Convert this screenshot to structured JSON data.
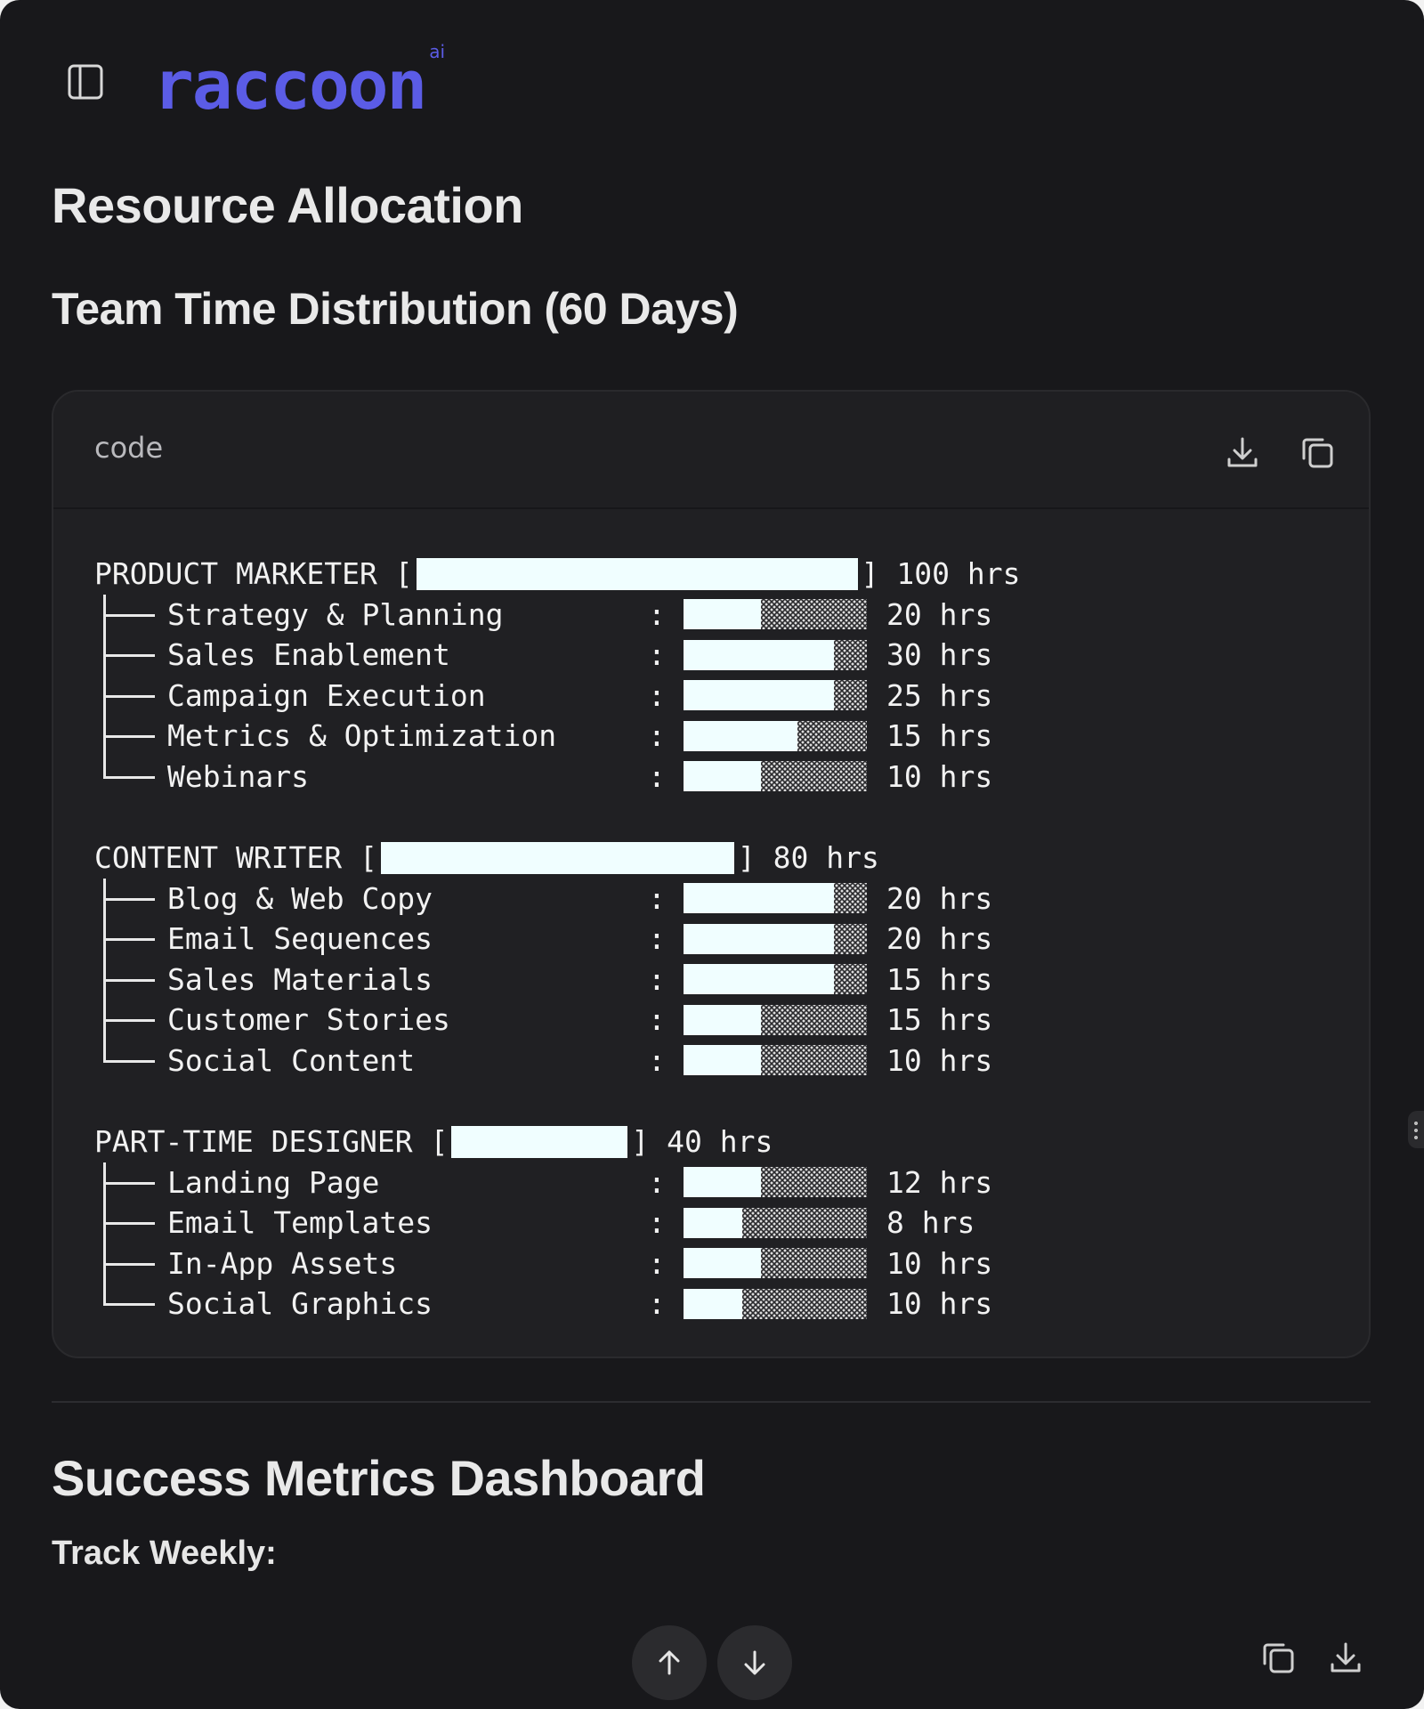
{
  "app": {
    "brand": "raccoon",
    "brand_sup": "ai",
    "brand_color": "#5b5ce6"
  },
  "content": {
    "title": "Resource Allocation",
    "subtitle": "Team Time Distribution (60 Days)"
  },
  "code_block": {
    "language_label": "code",
    "actions": [
      "download-icon",
      "copy-icon"
    ],
    "groups": [
      {
        "role": "PRODUCT MARKETER",
        "total": "100 hrs",
        "total_fraction": 1.0,
        "tasks": [
          {
            "label": "Strategy & Planning",
            "hours": "20 hrs",
            "fill": 0.42
          },
          {
            "label": "Sales Enablement",
            "hours": "30 hrs",
            "fill": 0.82
          },
          {
            "label": "Campaign Execution",
            "hours": "25 hrs",
            "fill": 0.82
          },
          {
            "label": "Metrics & Optimization",
            "hours": "15 hrs",
            "fill": 0.62
          },
          {
            "label": "Webinars",
            "hours": "10 hrs",
            "fill": 0.42
          }
        ]
      },
      {
        "role": "CONTENT WRITER",
        "total": "80 hrs",
        "total_fraction": 0.8,
        "tasks": [
          {
            "label": "Blog & Web Copy",
            "hours": "20 hrs",
            "fill": 0.82
          },
          {
            "label": "Email Sequences",
            "hours": "20 hrs",
            "fill": 0.82
          },
          {
            "label": "Sales Materials",
            "hours": "15 hrs",
            "fill": 0.82
          },
          {
            "label": "Customer Stories",
            "hours": "15 hrs",
            "fill": 0.42
          },
          {
            "label": "Social Content",
            "hours": "10 hrs",
            "fill": 0.42
          }
        ]
      },
      {
        "role": "PART-TIME DESIGNER",
        "total": "40 hrs",
        "total_fraction": 0.4,
        "tasks": [
          {
            "label": "Landing Page",
            "hours": "12 hrs",
            "fill": 0.42
          },
          {
            "label": "Email Templates",
            "hours": "8 hrs",
            "fill": 0.32
          },
          {
            "label": "In-App Assets",
            "hours": "10 hrs",
            "fill": 0.42
          },
          {
            "label": "Social Graphics",
            "hours": "10 hrs",
            "fill": 0.32
          }
        ]
      }
    ]
  },
  "metrics": {
    "title": "Success Metrics Dashboard",
    "track": "Track Weekly:"
  },
  "footer": {
    "nav": [
      "arrow-up-icon",
      "arrow-down-icon"
    ],
    "actions": [
      "copy-icon",
      "download-icon"
    ]
  }
}
